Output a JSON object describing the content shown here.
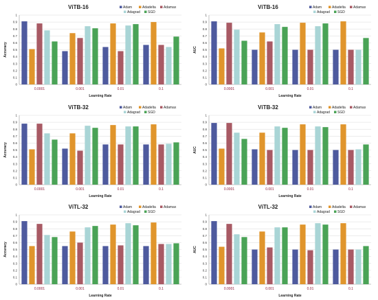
{
  "chart_data": [
    {
      "type": "bar",
      "title": "ViTB-16",
      "xlabel": "Learning Rate",
      "ylabel": "Accuracy",
      "ylim": [
        0,
        1
      ],
      "yticks": [
        "0",
        "0.1",
        "0.2",
        "0.3",
        "0.4",
        "0.5",
        "0.6",
        "0.7",
        "0.8",
        "0.9",
        "1"
      ],
      "categories": [
        "0.0001",
        "0.001",
        "0.01",
        "0.1"
      ],
      "series": [
        {
          "name": "Adam",
          "values": [
            0.91,
            0.48,
            0.54,
            0.57
          ]
        },
        {
          "name": "Adadelta",
          "values": [
            0.51,
            0.74,
            0.88,
            0.9
          ]
        },
        {
          "name": "Adamax",
          "values": [
            0.88,
            0.67,
            0.48,
            0.57
          ]
        },
        {
          "name": "Adagrad",
          "values": [
            0.78,
            0.84,
            0.85,
            0.54
          ]
        },
        {
          "name": "SGD",
          "values": [
            0.62,
            0.81,
            0.87,
            0.69
          ]
        }
      ],
      "legend": "top-right"
    },
    {
      "type": "bar",
      "title": "ViTB-16",
      "xlabel": "Learning Rate",
      "ylabel": "AUC",
      "ylim": [
        0,
        1
      ],
      "yticks": [
        "0",
        "0.1",
        "0.2",
        "0.3",
        "0.4",
        "0.5",
        "0.6",
        "0.7",
        "0.8",
        "0.9",
        "1"
      ],
      "categories": [
        "0.0001",
        "0.001",
        "0.01",
        "0.1"
      ],
      "series": [
        {
          "name": "Adam",
          "values": [
            0.91,
            0.5,
            0.5,
            0.5
          ]
        },
        {
          "name": "Adadelta",
          "values": [
            0.52,
            0.75,
            0.89,
            0.91
          ]
        },
        {
          "name": "Adamax",
          "values": [
            0.89,
            0.62,
            0.5,
            0.5
          ]
        },
        {
          "name": "Adagrad",
          "values": [
            0.79,
            0.87,
            0.84,
            0.5
          ]
        },
        {
          "name": "SGD",
          "values": [
            0.63,
            0.83,
            0.88,
            0.67
          ]
        }
      ],
      "legend": "top-right"
    },
    {
      "type": "bar",
      "title": "ViTB-32",
      "xlabel": "Learning Rate",
      "ylabel": "Accuracy",
      "ylim": [
        0,
        1
      ],
      "yticks": [
        "0",
        "0.1",
        "0.2",
        "0.3",
        "0.4",
        "0.5",
        "0.6",
        "0.7",
        "0.8",
        "0.9",
        "1"
      ],
      "categories": [
        "0.0001",
        "0.001",
        "0.01",
        "0.1"
      ],
      "series": [
        {
          "name": "Adam",
          "values": [
            0.88,
            0.52,
            0.58,
            0.58
          ]
        },
        {
          "name": "Adadelta",
          "values": [
            0.51,
            0.74,
            0.86,
            0.87
          ]
        },
        {
          "name": "Adamax",
          "values": [
            0.88,
            0.49,
            0.58,
            0.58
          ]
        },
        {
          "name": "Adagrad",
          "values": [
            0.74,
            0.85,
            0.84,
            0.59
          ]
        },
        {
          "name": "SGD",
          "values": [
            0.65,
            0.82,
            0.84,
            0.61
          ]
        }
      ],
      "legend": "top-right"
    },
    {
      "type": "bar",
      "title": "ViTB-32",
      "xlabel": "Learning Rate",
      "ylabel": "AUC",
      "ylim": [
        0,
        1
      ],
      "yticks": [
        "0",
        "0.1",
        "0.2",
        "0.3",
        "0.4",
        "0.5",
        "0.6",
        "0.7",
        "0.8",
        "0.9",
        "1"
      ],
      "categories": [
        "0.0001",
        "0.001",
        "0.01",
        "0.1"
      ],
      "series": [
        {
          "name": "Adam",
          "values": [
            0.89,
            0.51,
            0.5,
            0.5
          ]
        },
        {
          "name": "Adadelta",
          "values": [
            0.52,
            0.75,
            0.87,
            0.87
          ]
        },
        {
          "name": "Adamax",
          "values": [
            0.89,
            0.5,
            0.5,
            0.5
          ]
        },
        {
          "name": "Adagrad",
          "values": [
            0.75,
            0.84,
            0.84,
            0.51
          ]
        },
        {
          "name": "SGD",
          "values": [
            0.66,
            0.82,
            0.83,
            0.58
          ]
        }
      ],
      "legend": "top-right"
    },
    {
      "type": "bar",
      "title": "ViTL-32",
      "xlabel": "Learning Rate",
      "ylabel": "Accuracy",
      "ylim": [
        0,
        1
      ],
      "yticks": [
        "0",
        "0.1",
        "0.2",
        "0.3",
        "0.4",
        "0.5",
        "0.6",
        "0.7",
        "0.8",
        "0.9",
        "1"
      ],
      "categories": [
        "0.0001",
        "0.001",
        "0.01",
        "0.1"
      ],
      "series": [
        {
          "name": "Adam",
          "values": [
            0.91,
            0.55,
            0.55,
            0.55
          ]
        },
        {
          "name": "Adadelta",
          "values": [
            0.55,
            0.76,
            0.86,
            0.89
          ]
        },
        {
          "name": "Adamax",
          "values": [
            0.87,
            0.6,
            0.56,
            0.58
          ]
        },
        {
          "name": "Adagrad",
          "values": [
            0.71,
            0.82,
            0.88,
            0.58
          ]
        },
        {
          "name": "SGD",
          "values": [
            0.68,
            0.84,
            0.85,
            0.59
          ]
        }
      ],
      "legend": "top-right"
    },
    {
      "type": "bar",
      "title": "ViTL-32",
      "xlabel": "Learning Rate",
      "ylabel": "AUC",
      "ylim": [
        0,
        1
      ],
      "yticks": [
        "0",
        "0.1",
        "0.2",
        "0.3",
        "0.4",
        "0.5",
        "0.6",
        "0.7",
        "0.8",
        "0.9",
        "1"
      ],
      "categories": [
        "0.0001",
        "0.001",
        "0.01",
        "0.1"
      ],
      "series": [
        {
          "name": "Adam",
          "values": [
            0.91,
            0.5,
            0.5,
            0.5
          ]
        },
        {
          "name": "Adadelta",
          "values": [
            0.54,
            0.76,
            0.86,
            0.88
          ]
        },
        {
          "name": "Adamax",
          "values": [
            0.87,
            0.53,
            0.49,
            0.5
          ]
        },
        {
          "name": "Adagrad",
          "values": [
            0.72,
            0.82,
            0.88,
            0.5
          ]
        },
        {
          "name": "SGD",
          "values": [
            0.68,
            0.82,
            0.86,
            0.55
          ]
        }
      ],
      "legend": "top-right"
    }
  ],
  "colors": {
    "Adam": "#4e5a9e",
    "Adadelta": "#e0952c",
    "Adamax": "#a85a64",
    "Adagrad": "#a9d5d6",
    "SGD": "#4aa356",
    "grid": "#d9d9d9",
    "axis": "#999999",
    "category_text": "#8a1c3c"
  }
}
